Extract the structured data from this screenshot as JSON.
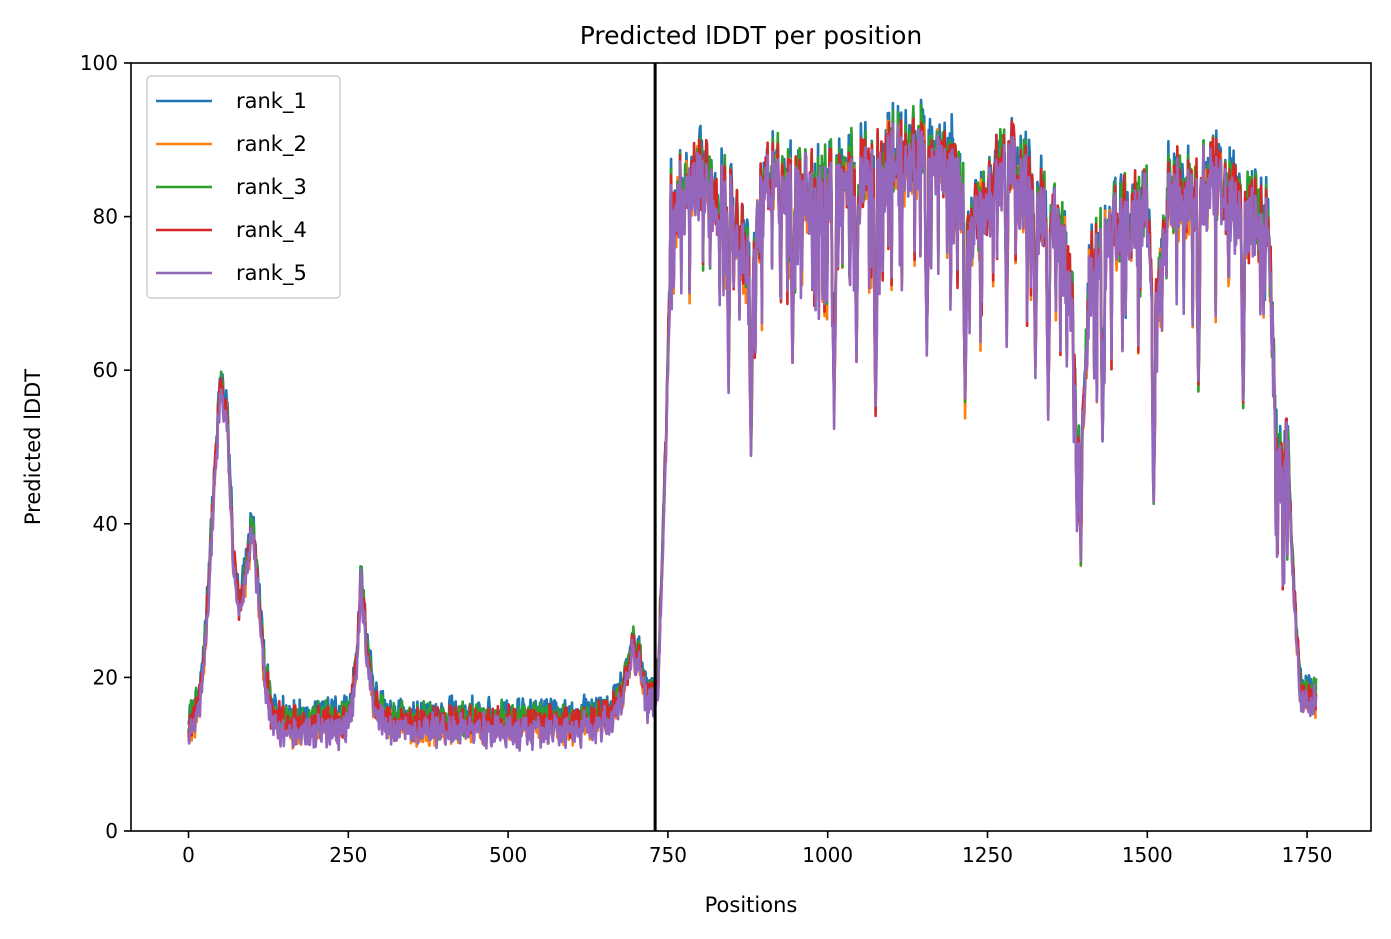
{
  "chart_data": {
    "type": "line",
    "title": "Predicted lDDT per position",
    "xlabel": "Positions",
    "ylabel": "Predicted lDDT",
    "xlim": [
      -90,
      1850
    ],
    "ylim": [
      0,
      100
    ],
    "xticks": [
      0,
      250,
      500,
      750,
      1000,
      1250,
      1500,
      1750
    ],
    "yticks": [
      0,
      20,
      40,
      60,
      80,
      100
    ],
    "grid": false,
    "legend_position": "top-left",
    "vertical_line_x": 730,
    "vertical_line_color": "#000000",
    "n_positions": 1765,
    "series": [
      {
        "name": "rank_1",
        "color": "#1f77b4",
        "offset": 1.2
      },
      {
        "name": "rank_2",
        "color": "#ff7f0e",
        "offset": -0.6
      },
      {
        "name": "rank_3",
        "color": "#2ca02c",
        "offset": 0.5
      },
      {
        "name": "rank_4",
        "color": "#d62728",
        "offset": 0.0
      },
      {
        "name": "rank_5",
        "color": "#9467bd",
        "offset": -1.0
      }
    ],
    "profile_keypoints": [
      [
        0,
        14
      ],
      [
        10,
        15
      ],
      [
        20,
        18
      ],
      [
        30,
        30
      ],
      [
        40,
        45
      ],
      [
        50,
        58
      ],
      [
        60,
        54
      ],
      [
        70,
        36
      ],
      [
        80,
        28
      ],
      [
        90,
        34
      ],
      [
        100,
        40
      ],
      [
        110,
        30
      ],
      [
        120,
        20
      ],
      [
        130,
        15
      ],
      [
        150,
        14
      ],
      [
        200,
        14
      ],
      [
        240,
        14
      ],
      [
        255,
        16
      ],
      [
        265,
        25
      ],
      [
        270,
        33
      ],
      [
        278,
        25
      ],
      [
        290,
        17
      ],
      [
        310,
        14
      ],
      [
        400,
        14
      ],
      [
        500,
        14
      ],
      [
        600,
        14
      ],
      [
        660,
        15
      ],
      [
        680,
        18
      ],
      [
        695,
        24
      ],
      [
        705,
        22
      ],
      [
        720,
        17
      ],
      [
        735,
        20
      ],
      [
        745,
        45
      ],
      [
        755,
        80
      ],
      [
        800,
        84
      ],
      [
        850,
        82
      ],
      [
        880,
        70
      ],
      [
        900,
        84
      ],
      [
        1000,
        83
      ],
      [
        1050,
        85
      ],
      [
        1100,
        87
      ],
      [
        1150,
        88
      ],
      [
        1200,
        85
      ],
      [
        1220,
        78
      ],
      [
        1250,
        82
      ],
      [
        1280,
        88
      ],
      [
        1300,
        84
      ],
      [
        1350,
        80
      ],
      [
        1380,
        72
      ],
      [
        1395,
        42
      ],
      [
        1410,
        72
      ],
      [
        1450,
        78
      ],
      [
        1500,
        80
      ],
      [
        1515,
        65
      ],
      [
        1530,
        82
      ],
      [
        1600,
        84
      ],
      [
        1650,
        80
      ],
      [
        1690,
        78
      ],
      [
        1700,
        55
      ],
      [
        1710,
        45
      ],
      [
        1720,
        50
      ],
      [
        1730,
        30
      ],
      [
        1740,
        18
      ],
      [
        1765,
        18
      ]
    ],
    "dips": [
      [
        845,
        60
      ],
      [
        880,
        49
      ],
      [
        945,
        62
      ],
      [
        1010,
        55
      ],
      [
        1045,
        63
      ],
      [
        1075,
        56
      ],
      [
        1155,
        63
      ],
      [
        1215,
        56
      ],
      [
        1280,
        66
      ],
      [
        1325,
        61
      ],
      [
        1345,
        56
      ],
      [
        1390,
        40
      ],
      [
        1430,
        52
      ],
      [
        1510,
        43
      ],
      [
        1580,
        58
      ],
      [
        1650,
        56
      ]
    ]
  }
}
